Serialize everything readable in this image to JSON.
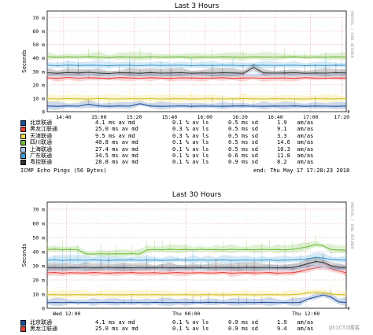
{
  "chart_data": [
    {
      "type": "line",
      "title": "Last 3 Hours",
      "ylabel": "Seconds",
      "ylim": [
        0,
        75
      ],
      "y_ticks": [
        "0",
        "10 m",
        "20 m",
        "30 m",
        "40 m",
        "50 m",
        "60 m",
        "70 m"
      ],
      "x_ticks": [
        {
          "label": "14:40",
          "t": 0.055
        },
        {
          "label": "15:00",
          "t": 0.173
        },
        {
          "label": "15:20",
          "t": 0.291
        },
        {
          "label": "15:40",
          "t": 0.409
        },
        {
          "label": "16:00",
          "t": 0.527
        },
        {
          "label": "16:20",
          "t": 0.645
        },
        {
          "label": "16:40",
          "t": 0.763
        },
        {
          "label": "17:00",
          "t": 0.881
        },
        {
          "label": "17:20",
          "t": 0.985
        }
      ],
      "side_text": "RRDTOOL / TOBI OETIKER",
      "series": [
        {
          "name": "北京联通",
          "color": "#1a4fa0",
          "values": [
            4.2,
            4.0,
            4.3,
            4.1,
            5.5,
            4.2,
            4.0,
            4.3,
            4.1,
            6.0,
            4.2,
            4.0,
            4.1,
            4.3,
            4.0,
            4.2,
            4.1,
            4.0,
            4.2,
            4.3,
            4.1,
            4.0,
            4.2,
            4.1,
            4.3,
            4.0,
            4.2,
            4.1,
            4.0,
            4.2
          ]
        },
        {
          "name": "黑龙江联通",
          "color": "#e8403a",
          "values": [
            25.2,
            24.8,
            25.5,
            24.9,
            25.3,
            25.0,
            24.7,
            25.4,
            25.1,
            24.9,
            25.3,
            25.0,
            24.8,
            25.2,
            25.1,
            24.9,
            25.0,
            25.3,
            24.8,
            25.1,
            25.2,
            24.9,
            25.0,
            25.1,
            24.8,
            25.3,
            25.0,
            24.9,
            25.1,
            25.0
          ]
        },
        {
          "name": "天津联通",
          "color": "#f0e048",
          "values": [
            9.6,
            9.4,
            9.7,
            9.5,
            9.3,
            9.8,
            9.5,
            9.4,
            9.6,
            9.5,
            9.7,
            9.4,
            9.5,
            9.6,
            9.3,
            9.5,
            9.6,
            9.4,
            9.5,
            9.7,
            9.5,
            9.4,
            9.6,
            9.5,
            9.5,
            9.4,
            9.6,
            9.5,
            9.5,
            9.6
          ]
        },
        {
          "name": "四川联通",
          "color": "#6fbf3a",
          "values": [
            41.0,
            40.6,
            40.9,
            40.7,
            41.1,
            40.8,
            40.5,
            40.9,
            40.8,
            40.6,
            41.0,
            40.7,
            40.8,
            40.9,
            40.6,
            40.8,
            40.7,
            40.9,
            40.8,
            40.6,
            40.9,
            40.8,
            40.7,
            40.8,
            40.9,
            40.6,
            40.8,
            40.7,
            40.9,
            40.8
          ]
        },
        {
          "name": "上海联通",
          "color": "#a8c8f0",
          "values": [
            27.6,
            27.3,
            27.5,
            27.2,
            27.6,
            27.4,
            27.1,
            27.5,
            27.4,
            27.3,
            27.6,
            27.2,
            27.4,
            27.5,
            27.3,
            27.4,
            27.2,
            27.5,
            27.4,
            27.3,
            27.5,
            27.4,
            27.2,
            27.4,
            27.5,
            27.3,
            27.4,
            27.4,
            27.3,
            27.5
          ]
        },
        {
          "name": "广东联通",
          "color": "#3fa0d8",
          "values": [
            34.6,
            34.3,
            34.7,
            34.4,
            34.6,
            34.5,
            34.2,
            34.6,
            34.5,
            34.3,
            34.7,
            34.4,
            34.5,
            34.6,
            34.3,
            34.5,
            34.4,
            34.6,
            34.5,
            34.3,
            34.6,
            34.5,
            34.4,
            34.5,
            34.6,
            34.3,
            34.5,
            34.4,
            34.6,
            34.5
          ]
        },
        {
          "name": "粤控联通",
          "color": "#333333",
          "values": [
            29.0,
            28.6,
            29.1,
            28.8,
            29.3,
            28.7,
            28.4,
            29.0,
            28.9,
            28.6,
            29.1,
            28.7,
            28.8,
            29.0,
            28.6,
            28.8,
            28.7,
            29.0,
            28.8,
            28.6,
            33.0,
            28.9,
            28.7,
            28.8,
            29.0,
            28.6,
            28.8,
            28.7,
            29.0,
            28.8
          ]
        }
      ]
    },
    {
      "type": "line",
      "title": "Last 30 Hours",
      "ylabel": "Seconds",
      "ylim": [
        0,
        75
      ],
      "y_ticks": [
        "0",
        "10 m",
        "20 m",
        "30 m",
        "40 m",
        "50 m",
        "60 m",
        "70 m"
      ],
      "x_ticks": [
        {
          "label": "Wed 12:00",
          "t": 0.065
        },
        {
          "label": "Thu 00:00",
          "t": 0.465
        },
        {
          "label": "Thu 12:00",
          "t": 0.865
        }
      ],
      "side_text": "RRDTOOL / TOBI OETIKER",
      "series": [
        {
          "name": "北京联通",
          "color": "#1a4fa0",
          "values": [
            4.0,
            4.1,
            4.0,
            4.2,
            4.0,
            4.1,
            4.0,
            4.1,
            4.2,
            4.0,
            4.1,
            4.0,
            4.1,
            4.0,
            4.2,
            4.1,
            4.0,
            4.1,
            4.0,
            4.1,
            4.0,
            4.2,
            4.1,
            4.0,
            4.1,
            4.0,
            4.1,
            4.0,
            4.2,
            4.1,
            4.0,
            4.1,
            4.0,
            4.1,
            6.5,
            8.0,
            9.5,
            8.0,
            4.5,
            4.1
          ]
        },
        {
          "name": "黑龙江联通",
          "color": "#e8403a",
          "values": [
            25.0,
            25.2,
            24.8,
            25.1,
            25.0,
            24.9,
            25.2,
            25.0,
            24.8,
            25.1,
            25.0,
            25.2,
            24.9,
            25.0,
            25.1,
            24.8,
            25.0,
            25.2,
            24.9,
            25.0,
            25.1,
            24.9,
            25.0,
            25.2,
            24.8,
            25.0,
            25.1,
            24.9,
            25.0,
            25.2,
            24.8,
            25.0,
            25.1,
            26.0,
            27.5,
            28.5,
            29.5,
            28.0,
            26.5,
            25.0
          ]
        },
        {
          "name": "天津联通",
          "color": "#f0e048",
          "values": [
            9.5,
            9.6,
            9.4,
            9.5,
            9.6,
            9.5,
            9.4,
            9.6,
            9.5,
            9.5,
            9.4,
            9.6,
            9.5,
            9.5,
            9.6,
            9.4,
            9.5,
            9.5,
            9.6,
            9.4,
            9.5,
            9.6,
            9.5,
            9.4,
            9.5,
            9.6,
            9.5,
            9.5,
            9.4,
            9.6,
            9.5,
            9.5,
            9.6,
            10.0,
            11.0,
            11.5,
            11.0,
            10.0,
            9.6,
            9.5
          ]
        },
        {
          "name": "四川联通",
          "color": "#6fbf3a",
          "values": [
            41.5,
            41.8,
            41.3,
            41.6,
            41.4,
            38.5,
            38.2,
            38.6,
            38.3,
            38.5,
            38.4,
            38.6,
            38.3,
            41.2,
            41.5,
            41.3,
            41.6,
            41.4,
            41.5,
            41.3,
            41.6,
            41.4,
            41.5,
            41.3,
            41.6,
            41.4,
            41.5,
            41.3,
            41.6,
            41.4,
            41.5,
            41.3,
            41.6,
            42.5,
            43.5,
            45.0,
            44.0,
            41.5,
            41.2,
            41.0
          ]
        },
        {
          "name": "上海联通",
          "color": "#a8c8f0",
          "values": [
            28.0,
            28.1,
            27.9,
            28.0,
            28.2,
            27.9,
            28.0,
            28.1,
            27.9,
            28.0,
            28.1,
            27.9,
            28.0,
            28.1,
            28.0,
            27.9,
            28.1,
            28.0,
            27.9,
            28.0,
            28.1,
            27.9,
            28.0,
            28.1,
            27.9,
            28.0,
            28.1,
            28.0,
            27.9,
            28.0,
            28.1,
            28.0,
            27.9,
            28.5,
            29.5,
            30.0,
            29.5,
            28.5,
            28.0,
            28.0
          ]
        },
        {
          "name": "广东联通",
          "color": "#3fa0d8",
          "values": [
            34.0,
            34.2,
            33.8,
            34.1,
            34.0,
            33.9,
            34.2,
            34.0,
            33.8,
            34.1,
            34.0,
            34.2,
            33.9,
            34.0,
            34.1,
            33.8,
            34.0,
            34.2,
            33.9,
            34.0,
            34.1,
            33.9,
            34.0,
            34.2,
            33.8,
            34.0,
            34.1,
            33.9,
            34.0,
            34.2,
            33.8,
            34.0,
            34.1,
            34.5,
            35.0,
            36.0,
            35.5,
            34.5,
            34.2,
            34.0
          ]
        },
        {
          "name": "粤控联通",
          "color": "#333333",
          "values": [
            28.8,
            28.9,
            28.6,
            28.8,
            28.7,
            28.9,
            28.6,
            28.8,
            28.9,
            28.7,
            28.8,
            28.6,
            28.9,
            28.8,
            28.7,
            28.9,
            28.6,
            28.8,
            28.7,
            28.9,
            28.8,
            28.6,
            28.9,
            28.7,
            28.8,
            28.6,
            28.9,
            28.8,
            28.7,
            28.9,
            28.6,
            28.8,
            28.7,
            30.0,
            31.5,
            33.0,
            32.5,
            30.0,
            29.0,
            28.8
          ]
        }
      ]
    }
  ],
  "legend_top": [
    {
      "name": "北京联通",
      "color": "#1a4fa0",
      "avmd": "4.1 ms av md",
      "avls": "0.1 % av ls",
      "sd": "0.5 ms sd",
      "amas": "1.9   am/as"
    },
    {
      "name": "黑龙江联通",
      "color": "#e8403a",
      "avmd": "25.0 ms av md",
      "avls": "0.3 % av ls",
      "sd": "0.5 ms sd",
      "amas": "9.1   am/as"
    },
    {
      "name": "天津联通",
      "color": "#f0e048",
      "avmd": "9.5 ms av md",
      "avls": "0.3 % av ls",
      "sd": "0.5 ms sd",
      "amas": "3.3   am/as"
    },
    {
      "name": "四川联通",
      "color": "#6fbf3a",
      "avmd": "40.8 ms av md",
      "avls": "0.1 % av ls",
      "sd": "0.5 ms sd",
      "amas": "14.6  am/as"
    },
    {
      "name": "上海联通",
      "color": "#a8c8f0",
      "avmd": "27.4 ms av md",
      "avls": "0.1 % av ls",
      "sd": "0.5 ms sd",
      "amas": "10.3  am/as"
    },
    {
      "name": "广东联通",
      "color": "#3fa0d8",
      "avmd": "34.5 ms av md",
      "avls": "0.1 % av ls",
      "sd": "0.6 ms sd",
      "amas": "11.8  am/as"
    },
    {
      "name": "粤控联通",
      "color": "#333333",
      "avmd": "28.8 ms av md",
      "avls": "0.1 % av ls",
      "sd": "0.9 ms sd",
      "amas": "8.2   am/as"
    }
  ],
  "legend_bottom": [
    {
      "name": "北京联通",
      "color": "#1a4fa0",
      "avmd": "4.1 ms av md",
      "avls": "0.1 % av ls",
      "sd": "0.9 ms sd",
      "amas": "1.9   am/as"
    },
    {
      "name": "黑龙江联通",
      "color": "#e8403a",
      "avmd": "25.0 ms av md",
      "avls": "0.1 % av ls",
      "sd": "0.9 ms sd",
      "amas": "9.4   am/as"
    }
  ],
  "footer": {
    "probe": "ICMP Echo Pings (56 Bytes)",
    "end": "end: Thu May 17 17:28:23 2018"
  },
  "watermark": "@51CTO博客"
}
